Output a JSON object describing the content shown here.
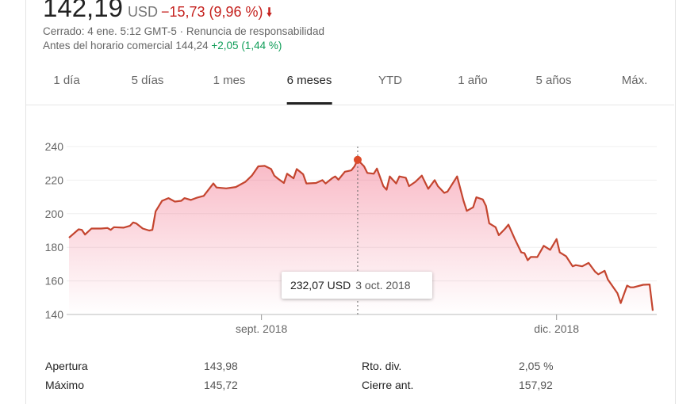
{
  "quote": {
    "price": "142,19",
    "currency": "USD",
    "change": "−15,73 (9,96 %)",
    "direction_icon": "arrow-down-icon",
    "status": "Cerrado: 4 ene. 5:12 GMT-5 · Renuncia de responsabilidad",
    "premarket_label": "Antes del horario comercial",
    "premarket_price": "144,24",
    "premarket_change": "+2,05 (1,44 %)"
  },
  "tabs": [
    {
      "label": "1 día",
      "active": false
    },
    {
      "label": "5 días",
      "active": false
    },
    {
      "label": "1 mes",
      "active": false
    },
    {
      "label": "6 meses",
      "active": true
    },
    {
      "label": "YTD",
      "active": false
    },
    {
      "label": "1 año",
      "active": false
    },
    {
      "label": "5 años",
      "active": false
    },
    {
      "label": "Máx.",
      "active": false
    }
  ],
  "tooltip": {
    "value": "232,07 USD",
    "date": "3 oct. 2018"
  },
  "stats": [
    {
      "label": "Apertura",
      "value": "143,98"
    },
    {
      "label": "Máximo",
      "value": "145,72"
    },
    {
      "label": "Rto. div.",
      "value": "2,05 %"
    },
    {
      "label": "Cierre ant.",
      "value": "157,92"
    }
  ],
  "colors": {
    "line": "#c4452f",
    "fill": "#f06480",
    "down": "#c5221f",
    "up": "#0f9d58"
  },
  "chart_data": {
    "type": "area",
    "xlim": [
      "2018-07-05",
      "2019-01-03"
    ],
    "ylim": [
      140,
      240
    ],
    "yticks": [
      140,
      160,
      180,
      200,
      220,
      240
    ],
    "ytick_labels": [
      "140",
      "160",
      "180",
      "200",
      "220",
      "240"
    ],
    "xticks": [
      {
        "date": "2018-09-03",
        "label": "sept. 2018"
      },
      {
        "date": "2018-12-04",
        "label": "dic. 2018"
      }
    ],
    "grid": true,
    "highlight": {
      "date": "2018-10-03",
      "value": 232.07
    },
    "points": [
      [
        "2018-07-05",
        185.7
      ],
      [
        "2018-07-08",
        190.7
      ],
      [
        "2018-07-09",
        190.4
      ],
      [
        "2018-07-10",
        187.6
      ],
      [
        "2018-07-12",
        191.2
      ],
      [
        "2018-07-15",
        191.2
      ],
      [
        "2018-07-17",
        191.5
      ],
      [
        "2018-07-18",
        190.4
      ],
      [
        "2018-07-19",
        192.0
      ],
      [
        "2018-07-22",
        191.7
      ],
      [
        "2018-07-24",
        192.8
      ],
      [
        "2018-07-25",
        194.8
      ],
      [
        "2018-07-26",
        194.2
      ],
      [
        "2018-07-28",
        191.2
      ],
      [
        "2018-07-30",
        190.0
      ],
      [
        "2018-07-31",
        190.4
      ],
      [
        "2018-08-01",
        201.4
      ],
      [
        "2018-08-03",
        207.7
      ],
      [
        "2018-08-05",
        209.3
      ],
      [
        "2018-08-07",
        207.2
      ],
      [
        "2018-08-09",
        207.7
      ],
      [
        "2018-08-10",
        209.3
      ],
      [
        "2018-08-12",
        208.2
      ],
      [
        "2018-08-14",
        209.6
      ],
      [
        "2018-08-16",
        210.6
      ],
      [
        "2018-08-19",
        218.0
      ],
      [
        "2018-08-20",
        215.6
      ],
      [
        "2018-08-23",
        215.1
      ],
      [
        "2018-08-26",
        215.9
      ],
      [
        "2018-08-29",
        219.0
      ],
      [
        "2018-08-31",
        222.7
      ],
      [
        "2018-09-02",
        228.2
      ],
      [
        "2018-09-04",
        228.5
      ],
      [
        "2018-09-06",
        226.6
      ],
      [
        "2018-09-07",
        222.7
      ],
      [
        "2018-09-08",
        221.1
      ],
      [
        "2018-09-10",
        218.3
      ],
      [
        "2018-09-11",
        223.8
      ],
      [
        "2018-09-13",
        221.1
      ],
      [
        "2018-09-14",
        226.6
      ],
      [
        "2018-09-16",
        223.5
      ],
      [
        "2018-09-17",
        218.0
      ],
      [
        "2018-09-20",
        218.3
      ],
      [
        "2018-09-22",
        220.0
      ],
      [
        "2018-09-23",
        218.0
      ],
      [
        "2018-09-25",
        221.1
      ],
      [
        "2018-09-26",
        222.2
      ],
      [
        "2018-09-27",
        220.3
      ],
      [
        "2018-09-29",
        225.0
      ],
      [
        "2018-10-01",
        225.8
      ],
      [
        "2018-10-02",
        228.2
      ],
      [
        "2018-10-03",
        232.07
      ],
      [
        "2018-10-05",
        228.2
      ],
      [
        "2018-10-06",
        224.3
      ],
      [
        "2018-10-08",
        223.8
      ],
      [
        "2018-10-09",
        226.9
      ],
      [
        "2018-10-11",
        216.4
      ],
      [
        "2018-10-12",
        214.3
      ],
      [
        "2018-10-13",
        222.2
      ],
      [
        "2018-10-15",
        218.0
      ],
      [
        "2018-10-16",
        222.2
      ],
      [
        "2018-10-18",
        221.4
      ],
      [
        "2018-10-19",
        216.4
      ],
      [
        "2018-10-21",
        219.0
      ],
      [
        "2018-10-23",
        222.7
      ],
      [
        "2018-10-25",
        214.8
      ],
      [
        "2018-10-27",
        220.0
      ],
      [
        "2018-10-28",
        216.4
      ],
      [
        "2018-10-30",
        212.4
      ],
      [
        "2018-10-31",
        213.2
      ],
      [
        "2018-11-03",
        222.2
      ],
      [
        "2018-11-05",
        207.7
      ],
      [
        "2018-11-06",
        201.7
      ],
      [
        "2018-11-08",
        203.8
      ],
      [
        "2018-11-09",
        209.8
      ],
      [
        "2018-11-11",
        208.5
      ],
      [
        "2018-11-12",
        204.6
      ],
      [
        "2018-11-13",
        194.3
      ],
      [
        "2018-11-15",
        192.0
      ],
      [
        "2018-11-16",
        187.2
      ],
      [
        "2018-11-18",
        191.2
      ],
      [
        "2018-11-19",
        193.5
      ],
      [
        "2018-11-21",
        184.9
      ],
      [
        "2018-11-23",
        177.0
      ],
      [
        "2018-11-24",
        176.5
      ],
      [
        "2018-11-25",
        172.3
      ],
      [
        "2018-11-26",
        174.3
      ],
      [
        "2018-11-28",
        174.2
      ],
      [
        "2018-11-30",
        180.9
      ],
      [
        "2018-12-02",
        178.5
      ],
      [
        "2018-12-04",
        184.9
      ],
      [
        "2018-12-05",
        177.0
      ],
      [
        "2018-12-07",
        174.6
      ],
      [
        "2018-12-09",
        168.7
      ],
      [
        "2018-12-10",
        169.4
      ],
      [
        "2018-12-12",
        168.7
      ],
      [
        "2018-12-14",
        170.7
      ],
      [
        "2018-12-16",
        165.5
      ],
      [
        "2018-12-17",
        163.9
      ],
      [
        "2018-12-19",
        166.0
      ],
      [
        "2018-12-20",
        160.8
      ],
      [
        "2018-12-23",
        152.6
      ],
      [
        "2018-12-24",
        146.8
      ],
      [
        "2018-12-26",
        157.2
      ],
      [
        "2018-12-27",
        156.2
      ],
      [
        "2018-12-28",
        156.2
      ],
      [
        "2018-12-31",
        157.7
      ],
      [
        "2019-01-02",
        157.9
      ],
      [
        "2019-01-03",
        142.2
      ]
    ]
  }
}
